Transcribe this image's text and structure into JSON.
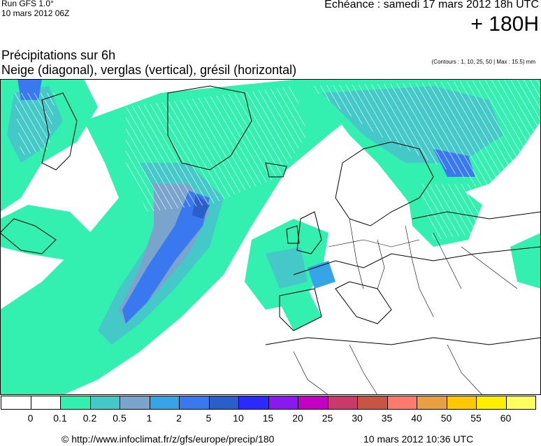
{
  "header": {
    "run_label": "Run GFS 1.0°",
    "run_date": "10 mars 2012 06Z",
    "echeance": "Echéance : samedi 17 mars 2012 18h UTC",
    "horizon": "+ 180H"
  },
  "titles": {
    "title": "Précipitations sur 6h",
    "subtitle": "Neige (diagonal), verglas (vertical), grésil (horizontal)",
    "contours": "(Contours : 1, 10, 25, 50 | Max : 15.5) mm"
  },
  "legend": {
    "labels": [
      "0",
      "0.1",
      "0.2",
      "0.5",
      "1",
      "2",
      "5",
      "10",
      "15",
      "20",
      "25",
      "30",
      "35",
      "40",
      "50",
      "55",
      "60"
    ],
    "colors": [
      "#ffffff",
      "#ffffff",
      "#33f0b0",
      "#44c8c8",
      "#7aa4cc",
      "#37a4e8",
      "#3a78f0",
      "#2a5ec8",
      "#2a2aff",
      "#8a18f0",
      "#c400c4",
      "#c83a6a",
      "#c85444",
      "#ff7a6a",
      "#e8a040",
      "#ffc800",
      "#ffee00",
      "#ffff60"
    ]
  },
  "footer": {
    "url": "© http://www.infoclimat.fr/z/gfs/europe/precip/180",
    "date": "10 mars 2012 10:36 UTC"
  }
}
